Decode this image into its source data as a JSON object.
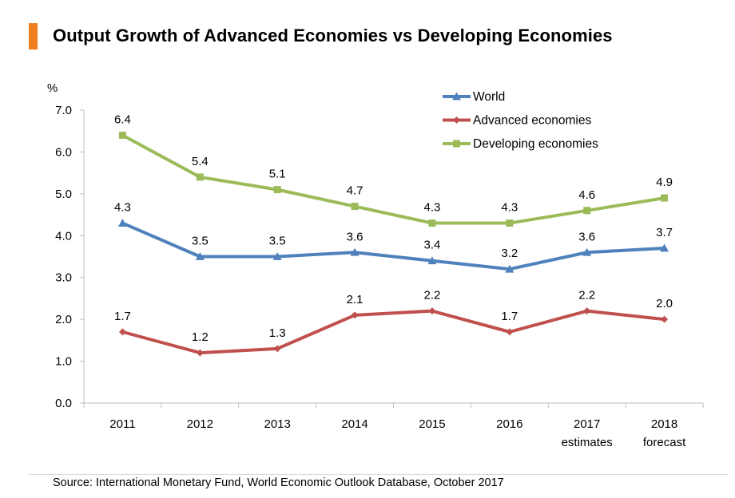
{
  "title": "Output Growth of Advanced Economies vs Developing Economies",
  "source": "Source: International Monetary Fund, World Economic Outlook Database, October 2017",
  "accent_color": "#f07f1d",
  "chart_data": {
    "type": "line",
    "title": "Output Growth of Advanced Economies vs Developing Economies",
    "ylabel": "%",
    "xlabel": "",
    "ylim": [
      0,
      7
    ],
    "yticks": [
      "0.0",
      "1.0",
      "2.0",
      "3.0",
      "4.0",
      "5.0",
      "6.0",
      "7.0"
    ],
    "categories": [
      [
        "2011"
      ],
      [
        "2012"
      ],
      [
        "2013"
      ],
      [
        "2014"
      ],
      [
        "2015"
      ],
      [
        "2016"
      ],
      [
        "2017",
        "estimates"
      ],
      [
        "2018",
        "forecast"
      ]
    ],
    "series": [
      {
        "name": "World",
        "color": "#4f81bd",
        "marker": "triangle",
        "values": [
          4.3,
          3.5,
          3.5,
          3.6,
          3.4,
          3.2,
          3.6,
          3.7
        ],
        "labels": [
          "4.3",
          "3.5",
          "3.5",
          "3.6",
          "3.4",
          "3.2",
          "3.6",
          "3.7"
        ]
      },
      {
        "name": "Advanced economies",
        "color": "#c0504d",
        "marker": "diamond",
        "values": [
          1.7,
          1.2,
          1.3,
          2.1,
          2.2,
          1.7,
          2.2,
          2.0
        ],
        "labels": [
          "1.7",
          "1.2",
          "1.3",
          "2.1",
          "2.2",
          "1.7",
          "2.2",
          "2.0"
        ]
      },
      {
        "name": "Developing economies",
        "color": "#9bbb59",
        "marker": "square",
        "values": [
          6.4,
          5.4,
          5.1,
          4.7,
          4.3,
          4.3,
          4.6,
          4.9
        ],
        "labels": [
          "6.4",
          "5.4",
          "5.1",
          "4.7",
          "4.3",
          "4.3",
          "4.6",
          "4.9"
        ]
      }
    ],
    "legend_position": "top-right",
    "grid": false
  }
}
